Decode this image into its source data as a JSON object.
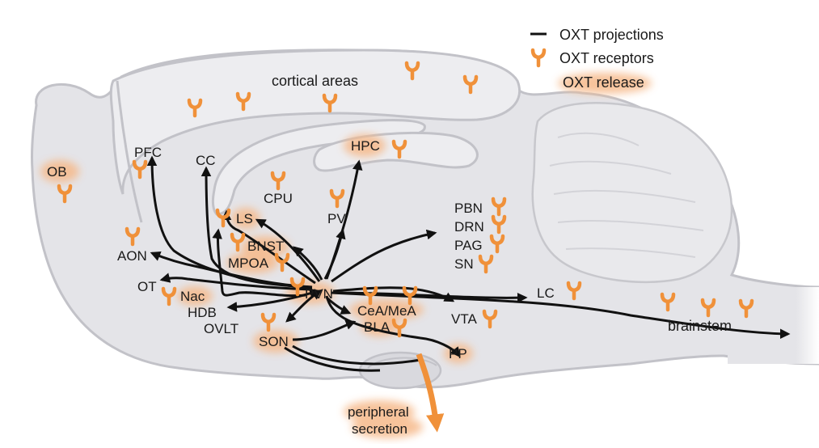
{
  "legend": {
    "projections": "OXT projections",
    "receptors": "OXT receptors",
    "release": "OXT release"
  },
  "regions": {
    "cortical": "cortical areas",
    "ob": "OB",
    "pfc": "PFC",
    "cc": "CC",
    "hpc": "HPC",
    "cpu": "CPU",
    "pv": "PV",
    "ls": "LS",
    "bnst": "BNST",
    "mpoa": "MPOA",
    "aon": "AON",
    "ot": "OT",
    "nac": "Nac",
    "hdb": "HDB",
    "ovlt": "OVLT",
    "pvn": "PVN",
    "son": "SON",
    "ceamea": "CeA/MeA",
    "bla": "BLA",
    "vta": "VTA",
    "lc": "LC",
    "pbn": "PBN",
    "drn": "DRN",
    "pag": "PAG",
    "sn": "SN",
    "pp": "PP",
    "brainstem": "brainstem",
    "secretion_line1": "peripheral",
    "secretion_line2": "secretion"
  },
  "colors": {
    "receptor": "#f0913a",
    "release_glow": "#f6b98a",
    "projection": "#111111",
    "tissue": "#e4e4e8"
  }
}
